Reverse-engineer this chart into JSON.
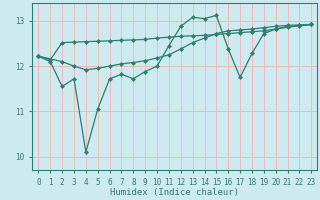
{
  "bg_color": "#cdeaf0",
  "grid_color": "#f0b8b8",
  "line_color": "#2e7d6e",
  "xlabel": "Humidex (Indice chaleur)",
  "xlim": [
    -0.5,
    23.5
  ],
  "ylim": [
    9.7,
    13.4
  ],
  "yticks": [
    10,
    11,
    12,
    13
  ],
  "xticks": [
    0,
    1,
    2,
    3,
    4,
    5,
    6,
    7,
    8,
    9,
    10,
    11,
    12,
    13,
    14,
    15,
    16,
    17,
    18,
    19,
    20,
    21,
    22,
    23
  ],
  "line1_x": [
    0,
    1,
    2,
    3,
    4,
    5,
    6,
    7,
    8,
    9,
    10,
    11,
    12,
    13,
    14,
    15,
    16,
    17,
    18,
    19,
    20,
    21,
    22,
    23
  ],
  "line1_y": [
    12.22,
    12.14,
    12.52,
    12.53,
    12.54,
    12.55,
    12.56,
    12.57,
    12.58,
    12.59,
    12.62,
    12.64,
    12.66,
    12.67,
    12.68,
    12.7,
    12.72,
    12.74,
    12.76,
    12.78,
    12.82,
    12.86,
    12.89,
    12.92
  ],
  "line2_x": [
    0,
    2,
    3,
    4,
    5,
    6,
    7,
    8,
    9,
    10,
    11,
    12,
    13,
    14,
    15,
    16,
    17,
    18,
    19,
    20,
    21,
    22,
    23
  ],
  "line2_y": [
    12.22,
    12.1,
    12.0,
    11.92,
    11.95,
    12.0,
    12.05,
    12.08,
    12.12,
    12.18,
    12.25,
    12.38,
    12.52,
    12.62,
    12.72,
    12.78,
    12.8,
    12.82,
    12.85,
    12.88,
    12.9,
    12.91,
    12.92
  ],
  "line3_x": [
    0,
    1,
    2,
    3,
    4,
    5,
    6,
    7,
    8,
    9,
    10,
    11,
    12,
    13,
    14,
    15,
    16,
    17,
    18,
    19,
    20,
    21,
    22,
    23
  ],
  "line3_y": [
    12.22,
    12.1,
    11.55,
    11.72,
    10.1,
    11.05,
    11.72,
    11.82,
    11.72,
    11.88,
    12.0,
    12.45,
    12.88,
    13.08,
    13.05,
    13.12,
    12.38,
    11.75,
    12.28,
    12.72,
    12.82,
    12.88,
    12.9,
    12.92
  ]
}
